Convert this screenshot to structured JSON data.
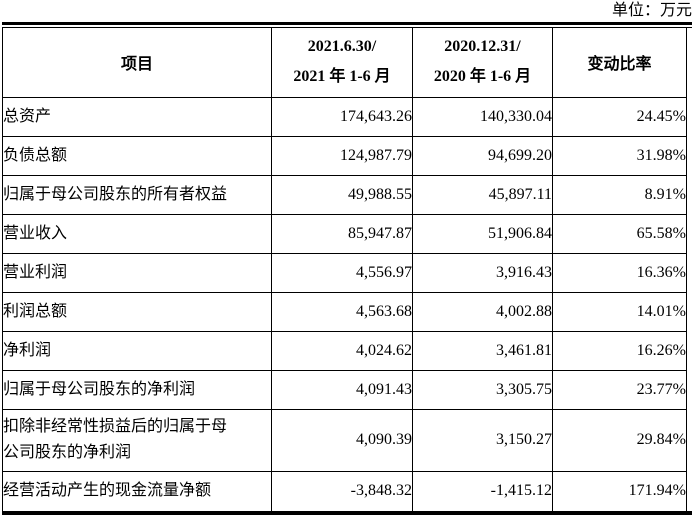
{
  "unit_label": "单位：万元",
  "table": {
    "header": {
      "item": "项目",
      "period1_line1": "2021.6.30/",
      "period1_line2": "2021 年 1-6 月",
      "period2_line1": "2020.12.31/",
      "period2_line2": "2020 年 1-6 月",
      "change": "变动比率"
    },
    "rows": [
      {
        "label": "总资产",
        "v2021": "174,643.26",
        "v2020": "140,330.04",
        "change": "24.45%"
      },
      {
        "label": "负债总额",
        "v2021": "124,987.79",
        "v2020": "94,699.20",
        "change": "31.98%"
      },
      {
        "label": "归属于母公司股东的所有者权益",
        "v2021": "49,988.55",
        "v2020": "45,897.11",
        "change": "8.91%"
      },
      {
        "label": "营业收入",
        "v2021": "85,947.87",
        "v2020": "51,906.84",
        "change": "65.58%"
      },
      {
        "label": "营业利润",
        "v2021": "4,556.97",
        "v2020": "3,916.43",
        "change": "16.36%"
      },
      {
        "label": "利润总额",
        "v2021": "4,563.68",
        "v2020": "4,002.88",
        "change": "14.01%"
      },
      {
        "label": "净利润",
        "v2021": "4,024.62",
        "v2020": "3,461.81",
        "change": "16.26%"
      },
      {
        "label": "归属于母公司股东的净利润",
        "v2021": "4,091.43",
        "v2020": "3,305.75",
        "change": "23.77%"
      },
      {
        "label": "扣除非经常性损益后的归属于母公司股东的净利润",
        "v2021": "4,090.39",
        "v2020": "3,150.27",
        "change": "29.84%"
      },
      {
        "label": "经营活动产生的现金流量净额",
        "v2021": "-3,848.32",
        "v2020": "-1,415.12",
        "change": "171.94%"
      }
    ]
  }
}
